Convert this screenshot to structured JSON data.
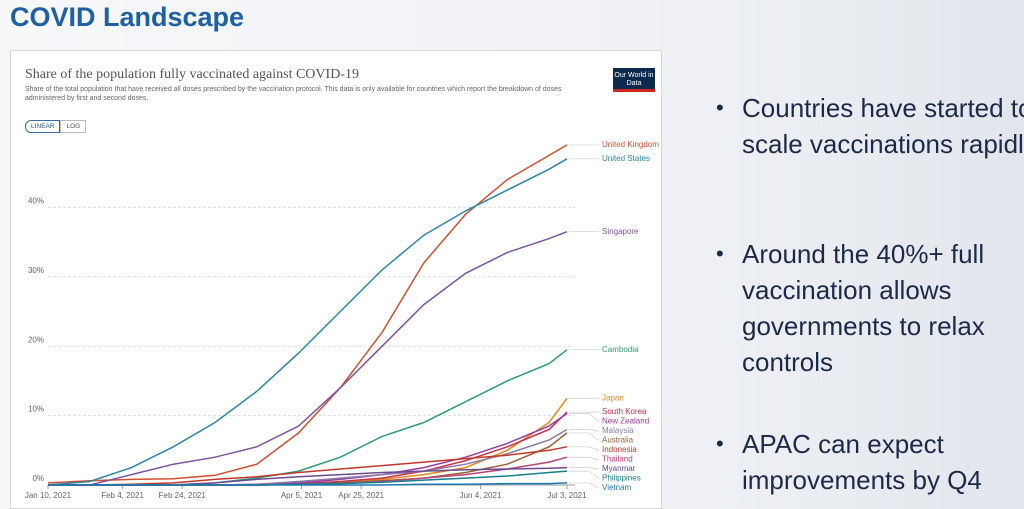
{
  "header": {
    "title": "COVID Landscape"
  },
  "chart_data": {
    "type": "line",
    "title": "Share of the population fully vaccinated against COVID-19",
    "subtitle": "Share of the total population that have received all doses prescribed by the vaccination protocol. This data is only available for countries which report the breakdown of doses administered by first and second doses.",
    "scale_options": [
      "LINEAR",
      "LOG"
    ],
    "log_scale": false,
    "source_logo": "Our World in Data",
    "x": [
      "2021-01-10",
      "2021-01-24",
      "2021-02-07",
      "2021-02-21",
      "2021-03-07",
      "2021-03-21",
      "2021-04-04",
      "2021-04-18",
      "2021-05-02",
      "2021-05-16",
      "2021-05-30",
      "2021-06-13",
      "2021-06-27",
      "2021-07-03"
    ],
    "xlim": [
      "2021-01-10",
      "2021-07-03"
    ],
    "xticks": [
      {
        "value": "2021-01-10",
        "label": "Jan 10, 2021"
      },
      {
        "value": "2021-02-04",
        "label": "Feb 4, 2021"
      },
      {
        "value": "2021-02-24",
        "label": "Feb 24, 2021"
      },
      {
        "value": "2021-04-05",
        "label": "Apr 5, 2021"
      },
      {
        "value": "2021-04-25",
        "label": "Apr 25, 2021"
      },
      {
        "value": "2021-06-04",
        "label": "Jun 4, 2021"
      },
      {
        "value": "2021-07-03",
        "label": "Jul 3, 2021"
      }
    ],
    "ylim": [
      0,
      50
    ],
    "yticks": [
      {
        "value": 0,
        "label": "0%"
      },
      {
        "value": 10,
        "label": "10%"
      },
      {
        "value": 20,
        "label": "20%"
      },
      {
        "value": 30,
        "label": "30%"
      },
      {
        "value": 40,
        "label": "40%"
      }
    ],
    "grid": true,
    "series": [
      {
        "name": "United Kingdom",
        "color": "#d2502d",
        "values": [
          0.3,
          0.6,
          0.8,
          0.9,
          1.4,
          3,
          7.5,
          14,
          22,
          32,
          39,
          44,
          47.5,
          49
        ]
      },
      {
        "name": "United States",
        "color": "#2a86a6",
        "values": [
          0,
          0.5,
          2.5,
          5.5,
          9,
          13.5,
          19,
          25,
          31,
          36,
          39.5,
          42.5,
          45.5,
          47
        ]
      },
      {
        "name": "Singapore",
        "color": "#7d54a2",
        "values": [
          0,
          0,
          1.5,
          3,
          4,
          5.5,
          8.5,
          14,
          20,
          26,
          30.5,
          33.5,
          35.5,
          36.5
        ]
      },
      {
        "name": "Cambodia",
        "color": "#2e9c75",
        "values": [
          0,
          0,
          0,
          0,
          0.3,
          1,
          2,
          4,
          7,
          9,
          12,
          15,
          17.5,
          19.5
        ]
      },
      {
        "name": "Japan",
        "color": "#e3891c",
        "values": [
          0,
          0,
          0,
          0,
          0,
          0,
          0.1,
          0.3,
          0.8,
          1.5,
          2.5,
          5,
          9,
          12.5
        ]
      },
      {
        "name": "South Korea",
        "color": "#c9304a",
        "values": [
          0,
          0,
          0,
          0,
          0,
          0,
          0.2,
          0.5,
          1,
          2,
          3.5,
          5.5,
          8,
          10.5
        ]
      },
      {
        "name": "New Zealand",
        "color": "#9b3ca6",
        "values": [
          0,
          0,
          0,
          0,
          0,
          0.1,
          0.3,
          0.8,
          1.5,
          2.5,
          4,
          6,
          8.5,
          10.3
        ]
      },
      {
        "name": "Malaysia",
        "color": "#8c7aa6",
        "values": [
          0,
          0,
          0,
          0,
          0,
          0.1,
          0.5,
          1,
          1.5,
          2,
          3,
          4.5,
          6.5,
          8
        ]
      },
      {
        "name": "Australia",
        "color": "#9a6236",
        "values": [
          0,
          0,
          0,
          0,
          0,
          0,
          0.1,
          0.3,
          0.6,
          1,
          1.8,
          3,
          5.5,
          7.5
        ]
      },
      {
        "name": "Indonesia",
        "color": "#c0392b",
        "values": [
          0,
          0,
          0.1,
          0.3,
          0.8,
          1.2,
          1.8,
          2.3,
          2.8,
          3.3,
          3.8,
          4.3,
          5,
          5.5
        ]
      },
      {
        "name": "Thailand",
        "color": "#b8457a",
        "values": [
          0,
          0,
          0,
          0,
          0,
          0,
          0.1,
          0.2,
          0.5,
          1,
          1.5,
          2.3,
          3.3,
          4
        ]
      },
      {
        "name": "Myanmar",
        "color": "#6b4b8f",
        "values": [
          0,
          0,
          0,
          0,
          0.3,
          0.8,
          1.2,
          1.5,
          1.8,
          2,
          2.2,
          2.3,
          2.4,
          2.5
        ]
      },
      {
        "name": "Philippines",
        "color": "#16808c",
        "values": [
          0,
          0,
          0,
          0,
          0,
          0,
          0.1,
          0.2,
          0.4,
          0.7,
          1,
          1.3,
          1.8,
          2
        ]
      },
      {
        "name": "Vietnam",
        "color": "#1f78b4",
        "values": [
          0,
          0,
          0,
          0,
          0,
          0,
          0,
          0,
          0,
          0.1,
          0.1,
          0.2,
          0.2,
          0.3
        ]
      }
    ]
  },
  "bullets": [
    "Countries have started to scale vaccinations rapidly",
    "Around the 40%+ full vaccination allows governments to relax controls",
    "APAC can expect improvements by Q4"
  ]
}
